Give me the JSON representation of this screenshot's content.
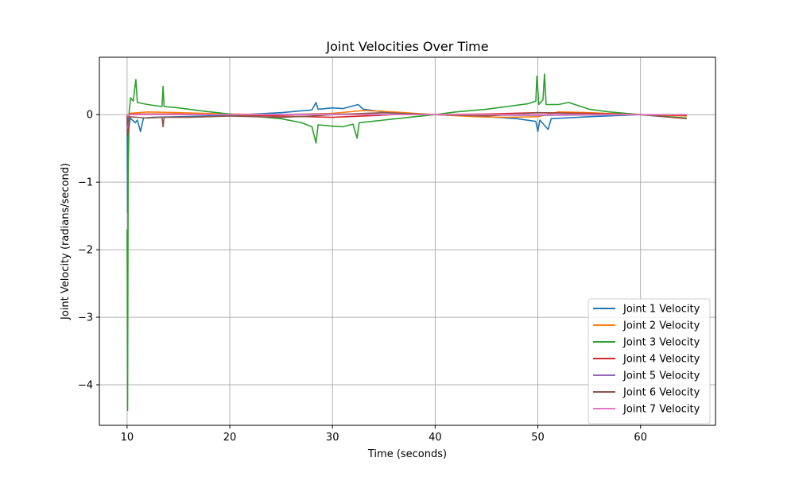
{
  "chart_data": {
    "type": "line",
    "title": "Joint Velocities Over Time",
    "xlabel": "Time (seconds)",
    "ylabel": "Joint Velocity (radians/second)",
    "xlim": [
      7.3,
      67.3
    ],
    "ylim": [
      -4.6,
      0.85
    ],
    "xticks": [
      10,
      20,
      30,
      40,
      50,
      60
    ],
    "yticks": [
      0,
      -1,
      -2,
      -3,
      -4
    ],
    "grid": true,
    "legend_position": "lower-right",
    "series": [
      {
        "name": "Joint 1 Velocity",
        "color": "#1f77b4",
        "points": [
          [
            10.0,
            -0.02
          ],
          [
            10.05,
            -1.45
          ],
          [
            10.1,
            -0.3
          ],
          [
            10.3,
            -0.05
          ],
          [
            10.8,
            -0.12
          ],
          [
            11.0,
            -0.08
          ],
          [
            11.3,
            -0.25
          ],
          [
            11.6,
            -0.05
          ],
          [
            12.5,
            -0.04
          ],
          [
            15.0,
            -0.03
          ],
          [
            20.0,
            -0.01
          ],
          [
            25.0,
            0.03
          ],
          [
            28.0,
            0.07
          ],
          [
            28.4,
            0.18
          ],
          [
            28.6,
            0.08
          ],
          [
            30.0,
            0.1
          ],
          [
            31.0,
            0.09
          ],
          [
            32.5,
            0.15
          ],
          [
            33.0,
            0.08
          ],
          [
            35.0,
            0.04
          ],
          [
            38.0,
            0.01
          ],
          [
            40.0,
            0.0
          ],
          [
            45.0,
            -0.03
          ],
          [
            48.0,
            -0.06
          ],
          [
            49.8,
            -0.1
          ],
          [
            50.0,
            -0.25
          ],
          [
            50.2,
            -0.08
          ],
          [
            51.0,
            -0.22
          ],
          [
            51.3,
            -0.06
          ],
          [
            55.0,
            -0.03
          ],
          [
            60.0,
            0.0
          ],
          [
            64.5,
            -0.01
          ]
        ]
      },
      {
        "name": "Joint 2 Velocity",
        "color": "#ff7f0e",
        "points": [
          [
            10.0,
            -0.02
          ],
          [
            10.05,
            -0.05
          ],
          [
            10.2,
            0.02
          ],
          [
            12.0,
            0.04
          ],
          [
            15.0,
            0.03
          ],
          [
            20.0,
            0.01
          ],
          [
            25.0,
            0.0
          ],
          [
            30.0,
            0.02
          ],
          [
            33.0,
            0.06
          ],
          [
            35.0,
            0.05
          ],
          [
            38.0,
            0.02
          ],
          [
            40.0,
            0.0
          ],
          [
            44.0,
            -0.03
          ],
          [
            47.0,
            -0.04
          ],
          [
            50.0,
            -0.03
          ],
          [
            52.0,
            0.04
          ],
          [
            55.0,
            0.03
          ],
          [
            60.0,
            0.0
          ],
          [
            64.5,
            -0.02
          ]
        ]
      },
      {
        "name": "Joint 3 Velocity",
        "color": "#2ca02c",
        "points": [
          [
            10.0,
            -1.7
          ],
          [
            10.05,
            -4.38
          ],
          [
            10.1,
            -0.9
          ],
          [
            10.2,
            0.05
          ],
          [
            10.35,
            0.25
          ],
          [
            10.6,
            0.2
          ],
          [
            10.85,
            0.52
          ],
          [
            11.0,
            0.18
          ],
          [
            12.0,
            0.15
          ],
          [
            13.4,
            0.12
          ],
          [
            13.5,
            0.42
          ],
          [
            13.6,
            0.12
          ],
          [
            15.0,
            0.1
          ],
          [
            17.0,
            0.06
          ],
          [
            20.0,
            0.01
          ],
          [
            22.0,
            -0.02
          ],
          [
            25.0,
            -0.06
          ],
          [
            27.0,
            -0.12
          ],
          [
            28.0,
            -0.18
          ],
          [
            28.4,
            -0.42
          ],
          [
            28.6,
            -0.15
          ],
          [
            30.0,
            -0.17
          ],
          [
            31.0,
            -0.18
          ],
          [
            32.0,
            -0.14
          ],
          [
            32.4,
            -0.35
          ],
          [
            32.6,
            -0.12
          ],
          [
            35.0,
            -0.08
          ],
          [
            38.0,
            -0.03
          ],
          [
            40.0,
            0.0
          ],
          [
            42.0,
            0.04
          ],
          [
            45.0,
            0.08
          ],
          [
            47.0,
            0.12
          ],
          [
            49.0,
            0.16
          ],
          [
            49.8,
            0.2
          ],
          [
            49.9,
            0.57
          ],
          [
            50.1,
            0.15
          ],
          [
            50.5,
            0.22
          ],
          [
            50.65,
            0.6
          ],
          [
            50.8,
            0.15
          ],
          [
            52.0,
            0.15
          ],
          [
            53.0,
            0.18
          ],
          [
            55.0,
            0.08
          ],
          [
            57.0,
            0.04
          ],
          [
            60.0,
            0.0
          ],
          [
            64.5,
            -0.05
          ]
        ]
      },
      {
        "name": "Joint 4 Velocity",
        "color": "#d62728",
        "points": [
          [
            10.0,
            0.0
          ],
          [
            10.05,
            -0.3
          ],
          [
            10.2,
            0.01
          ],
          [
            15.0,
            0.01
          ],
          [
            20.0,
            0.0
          ],
          [
            25.0,
            -0.02
          ],
          [
            30.0,
            -0.04
          ],
          [
            33.0,
            -0.02
          ],
          [
            36.0,
            0.0
          ],
          [
            40.0,
            0.0
          ],
          [
            45.0,
            0.01
          ],
          [
            50.0,
            0.03
          ],
          [
            55.0,
            0.02
          ],
          [
            60.0,
            0.0
          ],
          [
            64.5,
            -0.01
          ]
        ]
      },
      {
        "name": "Joint 5 Velocity",
        "color": "#9467bd",
        "points": [
          [
            10.0,
            0.0
          ],
          [
            10.05,
            -0.2
          ],
          [
            10.2,
            0.0
          ],
          [
            20.0,
            0.0
          ],
          [
            30.0,
            0.01
          ],
          [
            40.0,
            0.0
          ],
          [
            50.0,
            -0.01
          ],
          [
            60.0,
            0.0
          ],
          [
            64.5,
            0.0
          ]
        ]
      },
      {
        "name": "Joint 6 Velocity",
        "color": "#8c564b",
        "points": [
          [
            10.0,
            0.0
          ],
          [
            10.05,
            -0.15
          ],
          [
            10.2,
            -0.03
          ],
          [
            12.0,
            -0.05
          ],
          [
            13.4,
            -0.04
          ],
          [
            13.5,
            -0.18
          ],
          [
            13.6,
            -0.04
          ],
          [
            16.0,
            -0.04
          ],
          [
            20.0,
            -0.02
          ],
          [
            25.0,
            -0.04
          ],
          [
            28.0,
            -0.02
          ],
          [
            30.0,
            0.0
          ],
          [
            35.0,
            0.03
          ],
          [
            40.0,
            0.0
          ],
          [
            45.0,
            -0.02
          ],
          [
            50.0,
            0.03
          ],
          [
            55.0,
            0.01
          ],
          [
            60.0,
            0.0
          ],
          [
            64.5,
            -0.06
          ]
        ]
      },
      {
        "name": "Joint 7 Velocity",
        "color": "#e377c2",
        "points": [
          [
            10.0,
            0.0
          ],
          [
            10.05,
            -0.02
          ],
          [
            10.2,
            0.0
          ],
          [
            64.5,
            0.0
          ]
        ]
      }
    ]
  }
}
